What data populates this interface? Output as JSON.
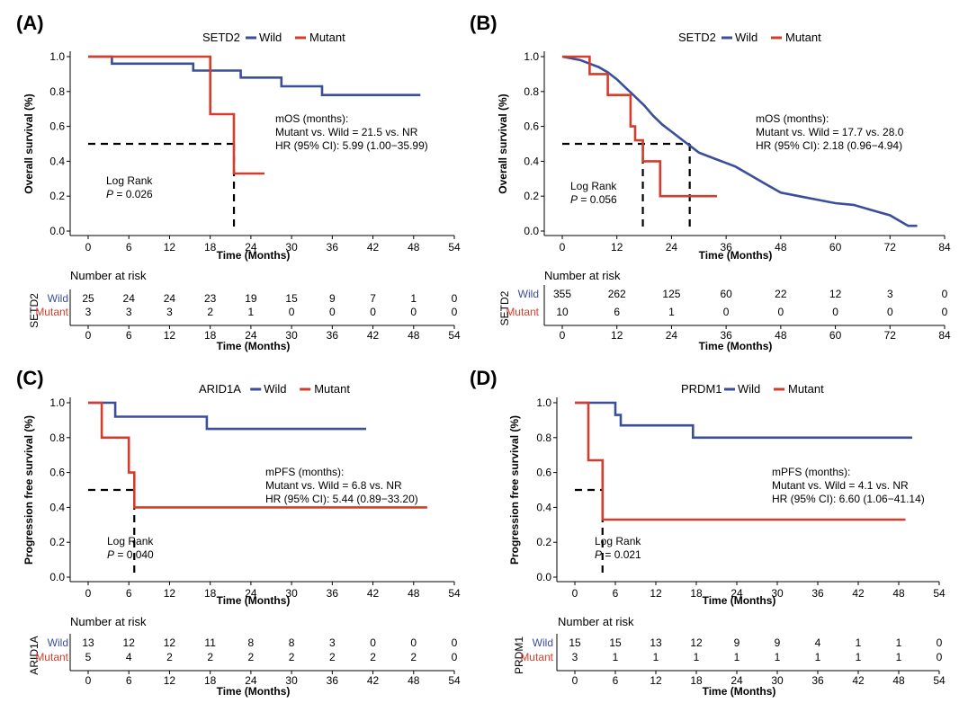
{
  "figure": {
    "number_at_risk_label": "Number at risk",
    "time_label": "Time (Months)"
  },
  "colors": {
    "wild": "#3A4E9A",
    "mutant": "#D23E2B",
    "axis": "#000000"
  },
  "chart_data": [
    {
      "panel": "(A)",
      "type": "line",
      "subtype": "kaplan-meier",
      "gene": "SETD2",
      "ylabel": "Overall survival (%)",
      "xlabel": "Time (Months)",
      "xlim": [
        0,
        54
      ],
      "ylim": [
        0,
        1
      ],
      "xticks": [
        0,
        6,
        12,
        18,
        24,
        30,
        36,
        42,
        48,
        54
      ],
      "yticks": [
        "0.0",
        "0.2",
        "0.4",
        "0.6",
        "0.8",
        "1.0"
      ],
      "legend": [
        "Wild",
        "Mutant"
      ],
      "series": [
        {
          "name": "Wild",
          "points": [
            [
              0,
              1.0
            ],
            [
              3.5,
              1.0
            ],
            [
              3.5,
              0.96
            ],
            [
              15.5,
              0.96
            ],
            [
              15.5,
              0.92
            ],
            [
              22.5,
              0.92
            ],
            [
              22.5,
              0.88
            ],
            [
              28.5,
              0.88
            ],
            [
              28.5,
              0.83
            ],
            [
              34.5,
              0.83
            ],
            [
              34.5,
              0.78
            ],
            [
              49,
              0.78
            ]
          ]
        },
        {
          "name": "Mutant",
          "points": [
            [
              0,
              1.0
            ],
            [
              18,
              1.0
            ],
            [
              18,
              0.67
            ],
            [
              21.5,
              0.67
            ],
            [
              21.5,
              0.33
            ],
            [
              26,
              0.33
            ]
          ]
        }
      ],
      "median_lines": [
        {
          "x": 21.5,
          "y": 0.5
        }
      ],
      "annotations": {
        "logrank": "Log Rank",
        "p_label": "P",
        "p_value": " = 0.026",
        "lines": [
          "mOS (months):",
          "Mutant vs. Wild = 21.5 vs. NR",
          "HR (95% CI): 5.99 (1.00−35.99)"
        ]
      },
      "risk_table": {
        "times": [
          0,
          6,
          12,
          18,
          24,
          30,
          36,
          42,
          48,
          54
        ],
        "wild": [
          25,
          24,
          24,
          23,
          19,
          15,
          9,
          7,
          1,
          0
        ],
        "mutant": [
          3,
          3,
          3,
          2,
          1,
          0,
          0,
          0,
          0,
          0
        ]
      }
    },
    {
      "panel": "(B)",
      "type": "line",
      "subtype": "kaplan-meier",
      "gene": "SETD2",
      "ylabel": "Overall survival (%)",
      "xlabel": "Time (Months)",
      "xlim": [
        0,
        84
      ],
      "ylim": [
        0,
        1
      ],
      "xticks": [
        0,
        12,
        24,
        36,
        48,
        60,
        72,
        84
      ],
      "yticks": [
        "0.0",
        "0.2",
        "0.4",
        "0.6",
        "0.8",
        "1.0"
      ],
      "legend": [
        "Wild",
        "Mutant"
      ],
      "series": [
        {
          "name": "Wild",
          "points": [
            [
              0,
              1.0
            ],
            [
              2,
              0.99
            ],
            [
              4,
              0.98
            ],
            [
              6,
              0.96
            ],
            [
              8,
              0.94
            ],
            [
              10,
              0.91
            ],
            [
              12,
              0.87
            ],
            [
              14,
              0.82
            ],
            [
              16,
              0.77
            ],
            [
              18,
              0.72
            ],
            [
              20,
              0.66
            ],
            [
              22,
              0.61
            ],
            [
              24,
              0.57
            ],
            [
              26,
              0.53
            ],
            [
              28,
              0.49
            ],
            [
              30,
              0.45
            ],
            [
              32,
              0.43
            ],
            [
              34,
              0.41
            ],
            [
              36,
              0.39
            ],
            [
              38,
              0.37
            ],
            [
              40,
              0.34
            ],
            [
              42,
              0.31
            ],
            [
              44,
              0.28
            ],
            [
              46,
              0.25
            ],
            [
              48,
              0.22
            ],
            [
              52,
              0.2
            ],
            [
              56,
              0.18
            ],
            [
              60,
              0.16
            ],
            [
              64,
              0.15
            ],
            [
              68,
              0.12
            ],
            [
              72,
              0.09
            ],
            [
              74,
              0.06
            ],
            [
              76,
              0.03
            ],
            [
              78,
              0.03
            ]
          ]
        },
        {
          "name": "Mutant",
          "points": [
            [
              0,
              1.0
            ],
            [
              6,
              1.0
            ],
            [
              6,
              0.9
            ],
            [
              10,
              0.9
            ],
            [
              10,
              0.78
            ],
            [
              15,
              0.78
            ],
            [
              15,
              0.6
            ],
            [
              16,
              0.6
            ],
            [
              16,
              0.52
            ],
            [
              17.7,
              0.52
            ],
            [
              17.7,
              0.4
            ],
            [
              21.5,
              0.4
            ],
            [
              21.5,
              0.2
            ],
            [
              34,
              0.2
            ]
          ]
        }
      ],
      "median_lines": [
        {
          "x": 17.7,
          "y": 0.5
        },
        {
          "x": 28.0,
          "y": 0.5
        }
      ],
      "annotations": {
        "logrank": "Log Rank",
        "p_label": "P",
        "p_value": " = 0.056",
        "lines": [
          "mOS (months):",
          "Mutant vs. Wild = 17.7 vs. 28.0",
          "HR (95% CI): 2.18 (0.96−4.94)"
        ]
      },
      "risk_table": {
        "times": [
          0,
          12,
          24,
          36,
          48,
          60,
          72,
          84
        ],
        "wild": [
          355,
          262,
          125,
          60,
          22,
          12,
          3,
          0
        ],
        "mutant": [
          10,
          6,
          1,
          0,
          0,
          0,
          0,
          0
        ]
      }
    },
    {
      "panel": "(C)",
      "type": "line",
      "subtype": "kaplan-meier",
      "gene": "ARID1A",
      "ylabel": "Progression free survival (%)",
      "xlabel": "Time (Months)",
      "xlim": [
        0,
        54
      ],
      "ylim": [
        0,
        1
      ],
      "xticks": [
        0,
        6,
        12,
        18,
        24,
        30,
        36,
        42,
        48,
        54
      ],
      "yticks": [
        "0.0",
        "0.2",
        "0.4",
        "0.6",
        "0.8",
        "1.0"
      ],
      "legend": [
        "Wild",
        "Mutant"
      ],
      "series": [
        {
          "name": "Wild",
          "points": [
            [
              0,
              1.0
            ],
            [
              4,
              1.0
            ],
            [
              4,
              0.92
            ],
            [
              17.5,
              0.92
            ],
            [
              17.5,
              0.85
            ],
            [
              41,
              0.85
            ]
          ]
        },
        {
          "name": "Mutant",
          "points": [
            [
              0,
              1.0
            ],
            [
              2,
              1.0
            ],
            [
              2,
              0.8
            ],
            [
              6,
              0.8
            ],
            [
              6,
              0.6
            ],
            [
              6.8,
              0.6
            ],
            [
              6.8,
              0.4
            ],
            [
              50,
              0.4
            ]
          ]
        }
      ],
      "median_lines": [
        {
          "x": 6.8,
          "y": 0.5
        }
      ],
      "annotations": {
        "logrank": "Log Rank",
        "p_label": "P",
        "p_value": " = 0.040",
        "lines": [
          "mPFS (months):",
          "Mutant vs. Wild = 6.8 vs. NR",
          "HR (95% CI): 5.44 (0.89−33.20)"
        ]
      },
      "risk_table": {
        "times": [
          0,
          6,
          12,
          18,
          24,
          30,
          36,
          42,
          48,
          54
        ],
        "wild": [
          13,
          12,
          12,
          11,
          8,
          8,
          3,
          0,
          0,
          0
        ],
        "mutant": [
          5,
          4,
          2,
          2,
          2,
          2,
          2,
          2,
          2,
          0
        ]
      }
    },
    {
      "panel": "(D)",
      "type": "line",
      "subtype": "kaplan-meier",
      "gene": "PRDM1",
      "ylabel": "Progression free survival (%)",
      "xlabel": "Time (Months)",
      "xlim": [
        0,
        54
      ],
      "ylim": [
        0,
        1
      ],
      "xticks": [
        0,
        6,
        12,
        18,
        24,
        30,
        36,
        42,
        48,
        54
      ],
      "yticks": [
        "0.0",
        "0.2",
        "0.4",
        "0.6",
        "0.8",
        "1.0"
      ],
      "legend": [
        "Wild",
        "Mutant"
      ],
      "series": [
        {
          "name": "Wild",
          "points": [
            [
              0,
              1.0
            ],
            [
              6,
              1.0
            ],
            [
              6,
              0.93
            ],
            [
              6.8,
              0.93
            ],
            [
              6.8,
              0.87
            ],
            [
              17.5,
              0.87
            ],
            [
              17.5,
              0.8
            ],
            [
              50,
              0.8
            ]
          ]
        },
        {
          "name": "Mutant",
          "points": [
            [
              0,
              1.0
            ],
            [
              2,
              1.0
            ],
            [
              2,
              0.67
            ],
            [
              4.1,
              0.67
            ],
            [
              4.1,
              0.33
            ],
            [
              49,
              0.33
            ]
          ]
        }
      ],
      "median_lines": [
        {
          "x": 4.1,
          "y": 0.5
        }
      ],
      "annotations": {
        "logrank": "Log Rank",
        "p_label": "P",
        "p_value": " = 0.021",
        "lines": [
          "mPFS (months):",
          "Mutant vs. Wild = 4.1 vs. NR",
          "HR (95% CI): 6.60 (1.06−41.14)"
        ]
      },
      "risk_table": {
        "times": [
          0,
          6,
          12,
          18,
          24,
          30,
          36,
          42,
          48,
          54
        ],
        "wild": [
          15,
          15,
          13,
          12,
          9,
          9,
          4,
          1,
          1,
          0
        ],
        "mutant": [
          3,
          1,
          1,
          1,
          1,
          1,
          1,
          1,
          1,
          0
        ]
      }
    }
  ]
}
